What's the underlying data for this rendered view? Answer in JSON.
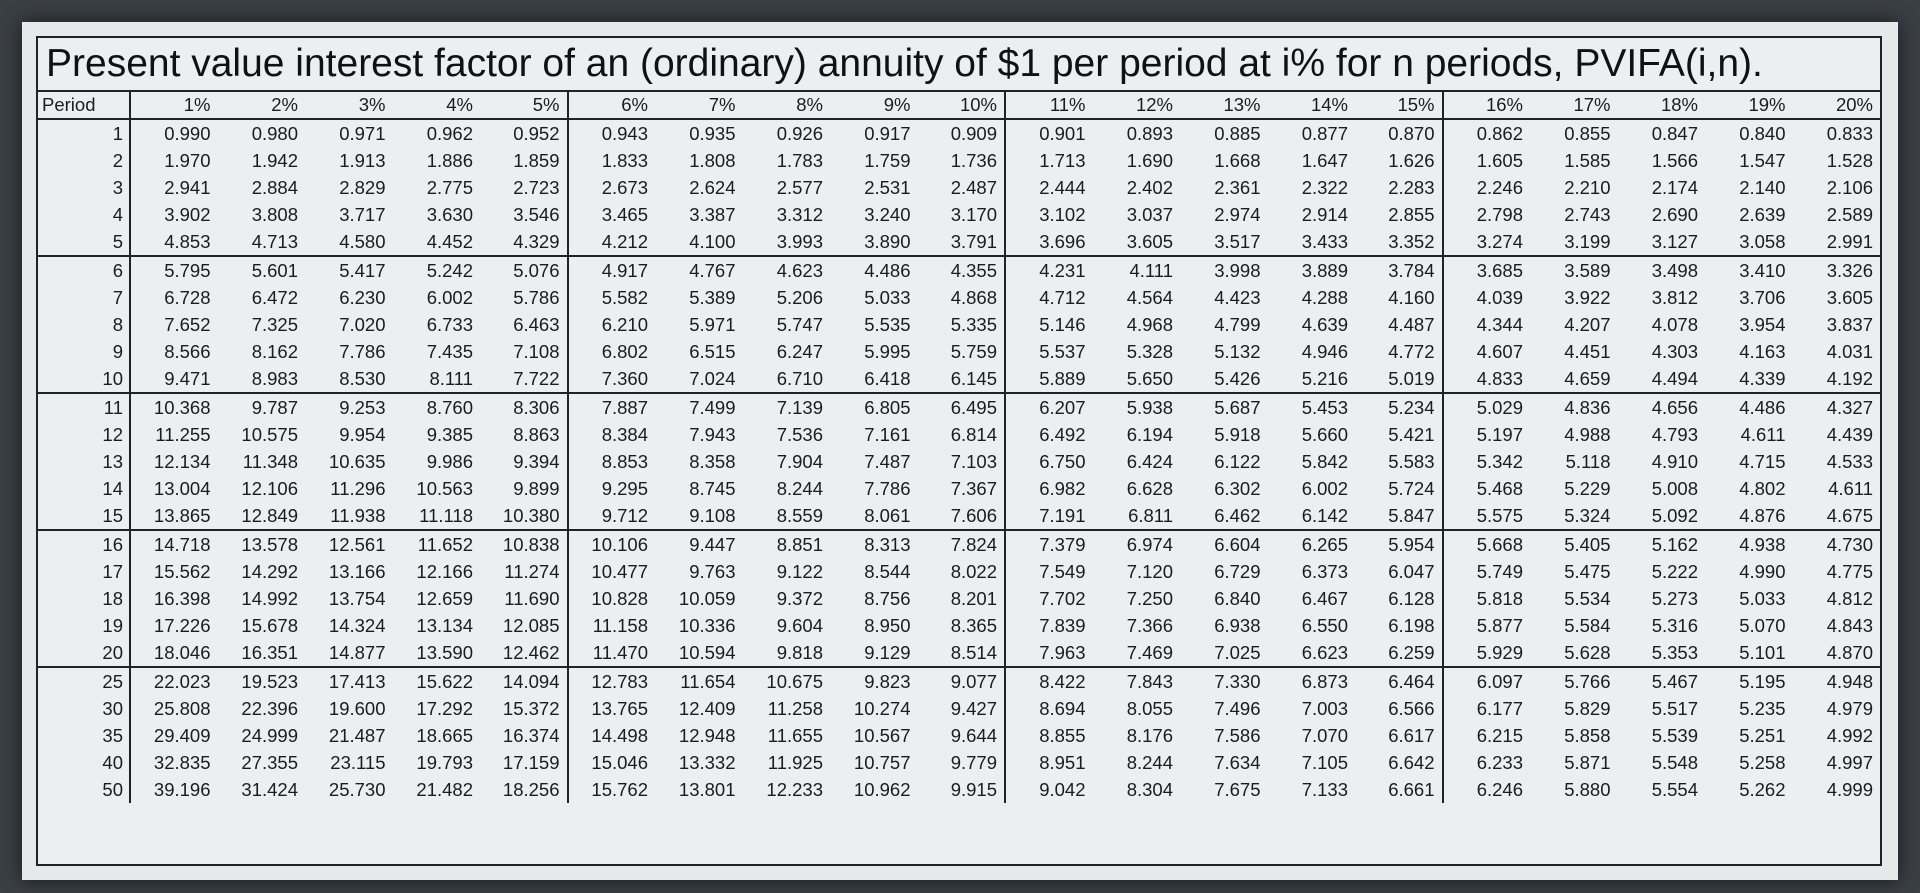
{
  "title": "Present value interest factor of an (ordinary) annuity of $1 per period at i% for n periods, PVIFA(i,n).",
  "headers": [
    "Period",
    "1%",
    "2%",
    "3%",
    "4%",
    "5%",
    "6%",
    "7%",
    "8%",
    "9%",
    "10%",
    "11%",
    "12%",
    "13%",
    "14%",
    "15%",
    "16%",
    "17%",
    "18%",
    "19%",
    "20%"
  ],
  "rows": [
    {
      "period": "1",
      "values": [
        "0.990",
        "0.980",
        "0.971",
        "0.962",
        "0.952",
        "0.943",
        "0.935",
        "0.926",
        "0.917",
        "0.909",
        "0.901",
        "0.893",
        "0.885",
        "0.877",
        "0.870",
        "0.862",
        "0.855",
        "0.847",
        "0.840",
        "0.833"
      ]
    },
    {
      "period": "2",
      "values": [
        "1.970",
        "1.942",
        "1.913",
        "1.886",
        "1.859",
        "1.833",
        "1.808",
        "1.783",
        "1.759",
        "1.736",
        "1.713",
        "1.690",
        "1.668",
        "1.647",
        "1.626",
        "1.605",
        "1.585",
        "1.566",
        "1.547",
        "1.528"
      ]
    },
    {
      "period": "3",
      "values": [
        "2.941",
        "2.884",
        "2.829",
        "2.775",
        "2.723",
        "2.673",
        "2.624",
        "2.577",
        "2.531",
        "2.487",
        "2.444",
        "2.402",
        "2.361",
        "2.322",
        "2.283",
        "2.246",
        "2.210",
        "2.174",
        "2.140",
        "2.106"
      ]
    },
    {
      "period": "4",
      "values": [
        "3.902",
        "3.808",
        "3.717",
        "3.630",
        "3.546",
        "3.465",
        "3.387",
        "3.312",
        "3.240",
        "3.170",
        "3.102",
        "3.037",
        "2.974",
        "2.914",
        "2.855",
        "2.798",
        "2.743",
        "2.690",
        "2.639",
        "2.589"
      ]
    },
    {
      "period": "5",
      "values": [
        "4.853",
        "4.713",
        "4.580",
        "4.452",
        "4.329",
        "4.212",
        "4.100",
        "3.993",
        "3.890",
        "3.791",
        "3.696",
        "3.605",
        "3.517",
        "3.433",
        "3.352",
        "3.274",
        "3.199",
        "3.127",
        "3.058",
        "2.991"
      ]
    },
    {
      "period": "6",
      "values": [
        "5.795",
        "5.601",
        "5.417",
        "5.242",
        "5.076",
        "4.917",
        "4.767",
        "4.623",
        "4.486",
        "4.355",
        "4.231",
        "4.111",
        "3.998",
        "3.889",
        "3.784",
        "3.685",
        "3.589",
        "3.498",
        "3.410",
        "3.326"
      ]
    },
    {
      "period": "7",
      "values": [
        "6.728",
        "6.472",
        "6.230",
        "6.002",
        "5.786",
        "5.582",
        "5.389",
        "5.206",
        "5.033",
        "4.868",
        "4.712",
        "4.564",
        "4.423",
        "4.288",
        "4.160",
        "4.039",
        "3.922",
        "3.812",
        "3.706",
        "3.605"
      ]
    },
    {
      "period": "8",
      "values": [
        "7.652",
        "7.325",
        "7.020",
        "6.733",
        "6.463",
        "6.210",
        "5.971",
        "5.747",
        "5.535",
        "5.335",
        "5.146",
        "4.968",
        "4.799",
        "4.639",
        "4.487",
        "4.344",
        "4.207",
        "4.078",
        "3.954",
        "3.837"
      ]
    },
    {
      "period": "9",
      "values": [
        "8.566",
        "8.162",
        "7.786",
        "7.435",
        "7.108",
        "6.802",
        "6.515",
        "6.247",
        "5.995",
        "5.759",
        "5.537",
        "5.328",
        "5.132",
        "4.946",
        "4.772",
        "4.607",
        "4.451",
        "4.303",
        "4.163",
        "4.031"
      ]
    },
    {
      "period": "10",
      "values": [
        "9.471",
        "8.983",
        "8.530",
        "8.111",
        "7.722",
        "7.360",
        "7.024",
        "6.710",
        "6.418",
        "6.145",
        "5.889",
        "5.650",
        "5.426",
        "5.216",
        "5.019",
        "4.833",
        "4.659",
        "4.494",
        "4.339",
        "4.192"
      ]
    },
    {
      "period": "11",
      "values": [
        "10.368",
        "9.787",
        "9.253",
        "8.760",
        "8.306",
        "7.887",
        "7.499",
        "7.139",
        "6.805",
        "6.495",
        "6.207",
        "5.938",
        "5.687",
        "5.453",
        "5.234",
        "5.029",
        "4.836",
        "4.656",
        "4.486",
        "4.327"
      ]
    },
    {
      "period": "12",
      "values": [
        "11.255",
        "10.575",
        "9.954",
        "9.385",
        "8.863",
        "8.384",
        "7.943",
        "7.536",
        "7.161",
        "6.814",
        "6.492",
        "6.194",
        "5.918",
        "5.660",
        "5.421",
        "5.197",
        "4.988",
        "4.793",
        "4.611",
        "4.439"
      ]
    },
    {
      "period": "13",
      "values": [
        "12.134",
        "11.348",
        "10.635",
        "9.986",
        "9.394",
        "8.853",
        "8.358",
        "7.904",
        "7.487",
        "7.103",
        "6.750",
        "6.424",
        "6.122",
        "5.842",
        "5.583",
        "5.342",
        "5.118",
        "4.910",
        "4.715",
        "4.533"
      ]
    },
    {
      "period": "14",
      "values": [
        "13.004",
        "12.106",
        "11.296",
        "10.563",
        "9.899",
        "9.295",
        "8.745",
        "8.244",
        "7.786",
        "7.367",
        "6.982",
        "6.628",
        "6.302",
        "6.002",
        "5.724",
        "5.468",
        "5.229",
        "5.008",
        "4.802",
        "4.611"
      ]
    },
    {
      "period": "15",
      "values": [
        "13.865",
        "12.849",
        "11.938",
        "11.118",
        "10.380",
        "9.712",
        "9.108",
        "8.559",
        "8.061",
        "7.606",
        "7.191",
        "6.811",
        "6.462",
        "6.142",
        "5.847",
        "5.575",
        "5.324",
        "5.092",
        "4.876",
        "4.675"
      ]
    },
    {
      "period": "16",
      "values": [
        "14.718",
        "13.578",
        "12.561",
        "11.652",
        "10.838",
        "10.106",
        "9.447",
        "8.851",
        "8.313",
        "7.824",
        "7.379",
        "6.974",
        "6.604",
        "6.265",
        "5.954",
        "5.668",
        "5.405",
        "5.162",
        "4.938",
        "4.730"
      ]
    },
    {
      "period": "17",
      "values": [
        "15.562",
        "14.292",
        "13.166",
        "12.166",
        "11.274",
        "10.477",
        "9.763",
        "9.122",
        "8.544",
        "8.022",
        "7.549",
        "7.120",
        "6.729",
        "6.373",
        "6.047",
        "5.749",
        "5.475",
        "5.222",
        "4.990",
        "4.775"
      ]
    },
    {
      "period": "18",
      "values": [
        "16.398",
        "14.992",
        "13.754",
        "12.659",
        "11.690",
        "10.828",
        "10.059",
        "9.372",
        "8.756",
        "8.201",
        "7.702",
        "7.250",
        "6.840",
        "6.467",
        "6.128",
        "5.818",
        "5.534",
        "5.273",
        "5.033",
        "4.812"
      ]
    },
    {
      "period": "19",
      "values": [
        "17.226",
        "15.678",
        "14.324",
        "13.134",
        "12.085",
        "11.158",
        "10.336",
        "9.604",
        "8.950",
        "8.365",
        "7.839",
        "7.366",
        "6.938",
        "6.550",
        "6.198",
        "5.877",
        "5.584",
        "5.316",
        "5.070",
        "4.843"
      ]
    },
    {
      "period": "20",
      "values": [
        "18.046",
        "16.351",
        "14.877",
        "13.590",
        "12.462",
        "11.470",
        "10.594",
        "9.818",
        "9.129",
        "8.514",
        "7.963",
        "7.469",
        "7.025",
        "6.623",
        "6.259",
        "5.929",
        "5.628",
        "5.353",
        "5.101",
        "4.870"
      ]
    },
    {
      "period": "25",
      "values": [
        "22.023",
        "19.523",
        "17.413",
        "15.622",
        "14.094",
        "12.783",
        "11.654",
        "10.675",
        "9.823",
        "9.077",
        "8.422",
        "7.843",
        "7.330",
        "6.873",
        "6.464",
        "6.097",
        "5.766",
        "5.467",
        "5.195",
        "4.948"
      ]
    },
    {
      "period": "30",
      "values": [
        "25.808",
        "22.396",
        "19.600",
        "17.292",
        "15.372",
        "13.765",
        "12.409",
        "11.258",
        "10.274",
        "9.427",
        "8.694",
        "8.055",
        "7.496",
        "7.003",
        "6.566",
        "6.177",
        "5.829",
        "5.517",
        "5.235",
        "4.979"
      ]
    },
    {
      "period": "35",
      "values": [
        "29.409",
        "24.999",
        "21.487",
        "18.665",
        "16.374",
        "14.498",
        "12.948",
        "11.655",
        "10.567",
        "9.644",
        "8.855",
        "8.176",
        "7.586",
        "7.070",
        "6.617",
        "6.215",
        "5.858",
        "5.539",
        "5.251",
        "4.992"
      ]
    },
    {
      "period": "40",
      "values": [
        "32.835",
        "27.355",
        "23.115",
        "19.793",
        "17.159",
        "15.046",
        "13.332",
        "11.925",
        "10.757",
        "9.779",
        "8.951",
        "8.244",
        "7.634",
        "7.105",
        "6.642",
        "6.233",
        "5.871",
        "5.548",
        "5.258",
        "4.997"
      ]
    },
    {
      "period": "50",
      "values": [
        "39.196",
        "31.424",
        "25.730",
        "21.482",
        "18.256",
        "15.762",
        "13.801",
        "12.233",
        "10.962",
        "9.915",
        "9.042",
        "8.304",
        "7.675",
        "7.133",
        "6.661",
        "6.246",
        "5.880",
        "5.554",
        "5.262",
        "4.999"
      ]
    }
  ]
}
